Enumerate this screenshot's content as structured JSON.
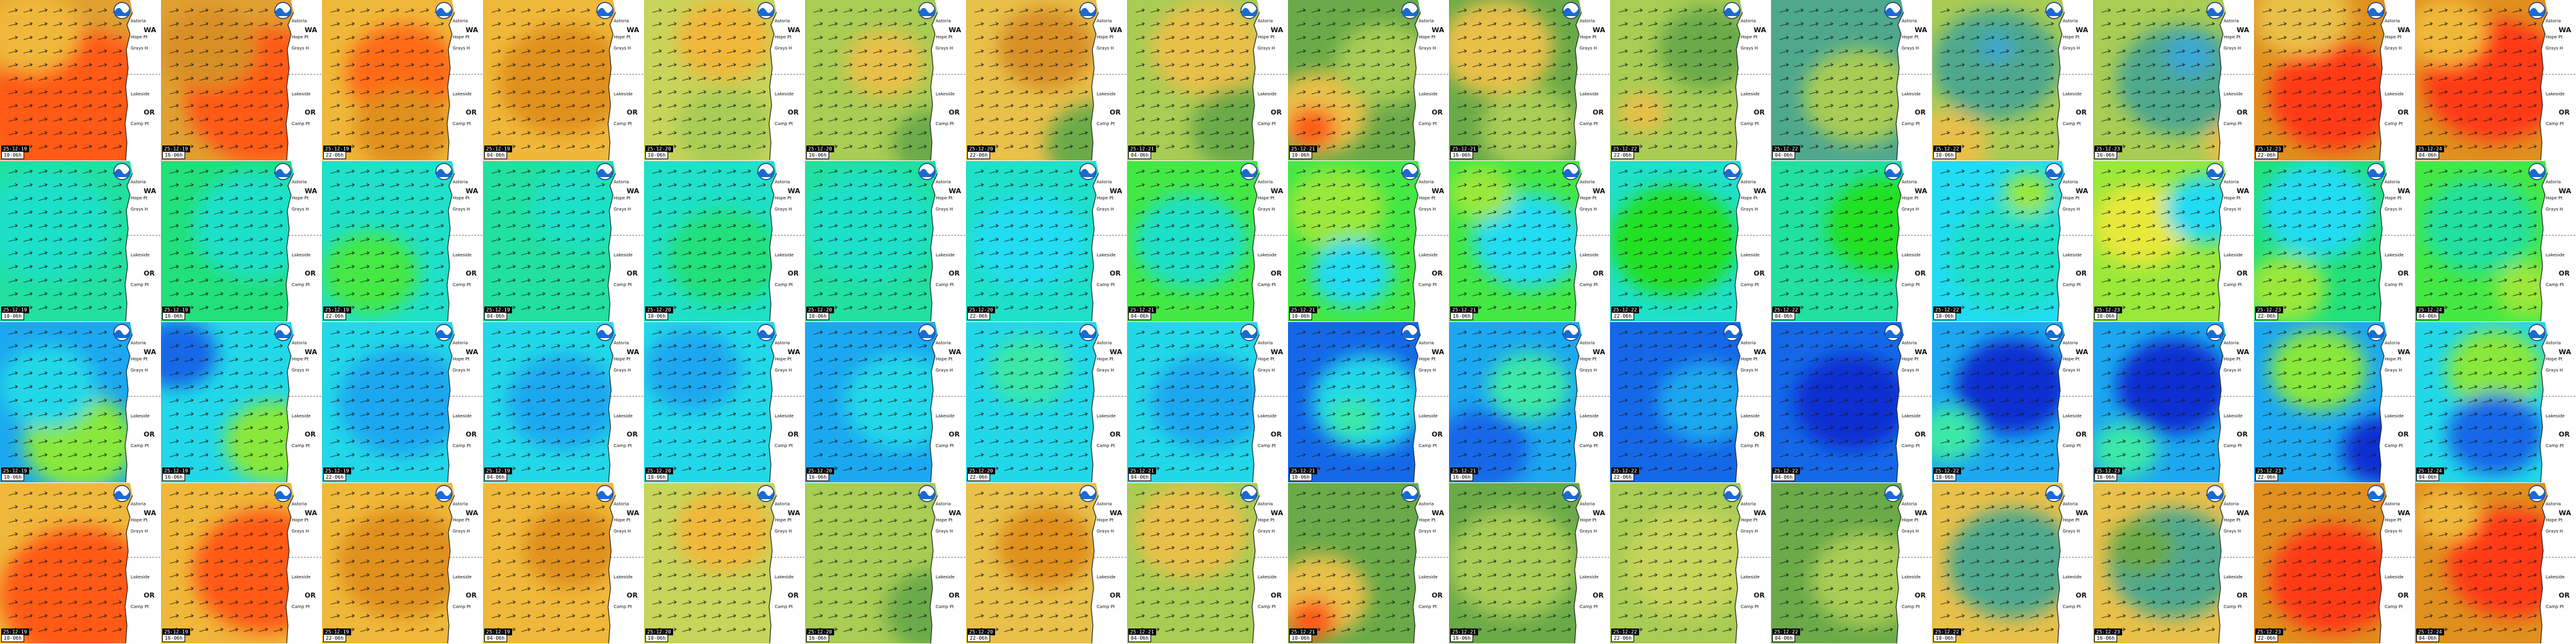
{
  "map_labels": {
    "state_1": "WA",
    "state_2": "OR",
    "cities": [
      "Astoria",
      "Hope Pt",
      "Grays H",
      "Lakeside",
      "Camp Pt"
    ]
  },
  "icons": [
    "noaa-logo-icon",
    "wind-arrow-icon"
  ],
  "palettes": {
    "row1": [
      "#e0901f",
      "#f0b83a",
      "#ff5a14",
      "#e8c04a",
      "#a8cc54",
      "#6aaa48",
      "#4ea88e",
      "#3aa7d6"
    ],
    "row2": [
      "#1fe0c8",
      "#22e07a",
      "#44e844",
      "#9ae83a",
      "#e8e83a",
      "#22dcf2"
    ],
    "row3": [
      "#0a2fd0",
      "#1468e8",
      "#1ca8f0",
      "#22d8e8",
      "#3ae8a8",
      "#88e83a",
      "#e8e83a"
    ],
    "row4": [
      "#e0901f",
      "#f0b83a",
      "#ff5a14",
      "#e8c04a",
      "#a8cc54",
      "#6aaa48",
      "#4ea88e"
    ]
  },
  "tiles": [
    {
      "date": "25-12-19",
      "time": "10-06h",
      "row": 1,
      "base": "#e0a032",
      "blobs": [
        [
          "#ff5a14",
          0.5,
          0.7,
          0.6
        ],
        [
          "#f0b83a",
          0.2,
          0.2,
          0.3
        ]
      ]
    },
    {
      "date": "25-12-19",
      "time": "16-06h",
      "row": 1,
      "base": "#e0a032",
      "blobs": [
        [
          "#ff5a14",
          0.65,
          0.6,
          0.5
        ],
        [
          "#d88f28",
          0.3,
          0.3,
          0.3
        ]
      ]
    },
    {
      "date": "25-12-19",
      "time": "22-06h",
      "row": 1,
      "base": "#f0b83a",
      "blobs": [
        [
          "#ff6a14",
          0.5,
          0.45,
          0.35
        ],
        [
          "#e0901f",
          0.5,
          0.8,
          0.3
        ]
      ]
    },
    {
      "date": "25-12-19",
      "time": "04-06h",
      "row": 1,
      "base": "#f0b83a",
      "blobs": [
        [
          "#e0901f",
          0.5,
          0.5,
          0.4
        ]
      ]
    },
    {
      "date": "25-12-20",
      "time": "10-06h",
      "row": 1,
      "base": "#c8d45a",
      "blobs": [
        [
          "#f0b83a",
          0.5,
          0.25,
          0.3
        ],
        [
          "#a8cc54",
          0.5,
          0.8,
          0.3
        ]
      ]
    },
    {
      "date": "25-12-20",
      "time": "16-06h",
      "row": 1,
      "base": "#a8cc54",
      "blobs": [
        [
          "#e8c04a",
          0.5,
          0.4,
          0.25
        ],
        [
          "#6aaa48",
          0.8,
          0.9,
          0.25
        ]
      ]
    },
    {
      "date": "25-12-20",
      "time": "22-06h",
      "row": 1,
      "base": "#e8c04a",
      "blobs": [
        [
          "#d88f28",
          0.5,
          0.3,
          0.3
        ],
        [
          "#6aaa48",
          0.8,
          0.9,
          0.3
        ]
      ]
    },
    {
      "date": "25-12-21",
      "time": "04-06h",
      "row": 1,
      "base": "#a8cc54",
      "blobs": [
        [
          "#e8c04a",
          0.5,
          0.3,
          0.35
        ],
        [
          "#6aaa48",
          0.7,
          0.8,
          0.3
        ]
      ]
    },
    {
      "date": "25-12-21",
      "time": "10-06h",
      "row": 1,
      "base": "#6aaa48",
      "blobs": [
        [
          "#e8c04a",
          0.2,
          0.7,
          0.3
        ],
        [
          "#ff5a14",
          0.15,
          0.8,
          0.15
        ],
        [
          "#a8cc54",
          0.6,
          0.4,
          0.3
        ]
      ]
    },
    {
      "date": "25-12-21",
      "time": "16-06h",
      "row": 1,
      "base": "#6aaa48",
      "blobs": [
        [
          "#e8c04a",
          0.3,
          0.3,
          0.35
        ],
        [
          "#a8cc54",
          0.5,
          0.8,
          0.3
        ]
      ]
    },
    {
      "date": "25-12-22",
      "time": "22-06h",
      "row": 1,
      "base": "#a8cc54",
      "blobs": [
        [
          "#6aaa48",
          0.6,
          0.3,
          0.3
        ],
        [
          "#e8c04a",
          0.2,
          0.7,
          0.15
        ]
      ]
    },
    {
      "date": "25-12-22",
      "time": "04-06h",
      "row": 1,
      "base": "#4ea88e",
      "blobs": [
        [
          "#a8cc54",
          0.55,
          0.6,
          0.35
        ]
      ]
    },
    {
      "date": "25-12-22",
      "time": "10-06h",
      "row": 1,
      "base": "#a8cc54",
      "blobs": [
        [
          "#4ea88e",
          0.4,
          0.4,
          0.4
        ],
        [
          "#3aa7d6",
          0.4,
          0.3,
          0.1
        ],
        [
          "#e8c04a",
          0.1,
          0.9,
          0.25
        ]
      ]
    },
    {
      "date": "25-12-23",
      "time": "16-06h",
      "row": 1,
      "base": "#a8cc54",
      "blobs": [
        [
          "#4ea88e",
          0.55,
          0.5,
          0.4
        ],
        [
          "#3aa7d6",
          0.6,
          0.35,
          0.15
        ],
        [
          "#e8c04a",
          0.9,
          0.9,
          0.2
        ]
      ]
    },
    {
      "date": "25-12-23",
      "time": "22-06h",
      "row": 1,
      "base": "#e0901f",
      "blobs": [
        [
          "#ff3a14",
          0.5,
          0.6,
          0.4
        ],
        [
          "#e8c04a",
          0.3,
          0.1,
          0.3
        ]
      ]
    },
    {
      "date": "25-12-24",
      "time": "04-06h",
      "row": 1,
      "base": "#e0901f",
      "blobs": [
        [
          "#ff3a14",
          0.5,
          0.5,
          0.45
        ],
        [
          "#f0b83a",
          0.2,
          0.2,
          0.25
        ]
      ]
    },
    {
      "date": "25-12-19",
      "time": "10-06h",
      "row": 2,
      "base": "#22e0a0",
      "blobs": [
        [
          "#1fe0c8",
          0.3,
          0.4,
          0.4
        ]
      ]
    },
    {
      "date": "25-12-19",
      "time": "16-06h",
      "row": 2,
      "base": "#22e07a",
      "blobs": [
        [
          "#1fe0c8",
          0.6,
          0.4,
          0.4
        ]
      ]
    },
    {
      "date": "25-12-19",
      "time": "22-06h",
      "row": 2,
      "base": "#1fe0c8",
      "blobs": [
        [
          "#44e844",
          0.3,
          0.7,
          0.3
        ]
      ]
    },
    {
      "date": "25-12-19",
      "time": "04-06h",
      "row": 2,
      "base": "#22e0a0",
      "blobs": [
        [
          "#1fe0c8",
          0.6,
          0.3,
          0.3
        ]
      ]
    },
    {
      "date": "25-12-20",
      "time": "10-06h",
      "row": 2,
      "base": "#1fe0c8",
      "blobs": [
        [
          "#22e07a",
          0.5,
          0.6,
          0.35
        ]
      ]
    },
    {
      "date": "25-12-20",
      "time": "16-06h",
      "row": 2,
      "base": "#22e0a0",
      "blobs": [
        [
          "#1fe0c8",
          0.4,
          0.4,
          0.4
        ]
      ]
    },
    {
      "date": "25-12-20",
      "time": "22-06h",
      "row": 2,
      "base": "#1fe0c8",
      "blobs": [
        [
          "#22dcf2",
          0.4,
          0.5,
          0.35
        ]
      ]
    },
    {
      "date": "25-12-21",
      "time": "04-06h",
      "row": 2,
      "base": "#44e844",
      "blobs": [
        [
          "#1fe0c8",
          0.4,
          0.5,
          0.35
        ]
      ]
    },
    {
      "date": "25-12-21",
      "time": "10-06h",
      "row": 2,
      "base": "#44e844",
      "blobs": [
        [
          "#9ae83a",
          0.3,
          0.3,
          0.3
        ],
        [
          "#22dcf2",
          0.4,
          0.7,
          0.25
        ]
      ]
    },
    {
      "date": "25-12-21",
      "time": "16-06h",
      "row": 2,
      "base": "#44e844",
      "blobs": [
        [
          "#22dcf2",
          0.5,
          0.5,
          0.35
        ],
        [
          "#9ae83a",
          0.2,
          0.2,
          0.2
        ]
      ]
    },
    {
      "date": "25-12-22",
      "time": "22-06h",
      "row": 2,
      "base": "#1fe0c8",
      "blobs": [
        [
          "#22e022",
          0.4,
          0.5,
          0.4
        ]
      ]
    },
    {
      "date": "25-12-22",
      "time": "04-06h",
      "row": 2,
      "base": "#22e0a0",
      "blobs": [
        [
          "#22e022",
          0.7,
          0.4,
          0.35
        ]
      ]
    },
    {
      "date": "25-12-22",
      "time": "10-06h",
      "row": 2,
      "base": "#22dcf2",
      "blobs": [
        [
          "#1fe0c8",
          0.5,
          0.6,
          0.4
        ],
        [
          "#9ae83a",
          0.6,
          0.2,
          0.15
        ]
      ]
    },
    {
      "date": "25-12-23",
      "time": "16-06h",
      "row": 2,
      "base": "#9ae83a",
      "blobs": [
        [
          "#e8e83a",
          0.3,
          0.4,
          0.3
        ],
        [
          "#22dcf2",
          0.7,
          0.3,
          0.25
        ]
      ]
    },
    {
      "date": "25-12-23",
      "time": "22-06h",
      "row": 2,
      "base": "#22e07a",
      "blobs": [
        [
          "#22dcf2",
          0.4,
          0.3,
          0.35
        ],
        [
          "#9ae83a",
          0.2,
          0.8,
          0.25
        ]
      ]
    },
    {
      "date": "25-12-24",
      "time": "04-06h",
      "row": 2,
      "base": "#44e844",
      "blobs": [
        [
          "#22e0a0",
          0.4,
          0.4,
          0.35
        ],
        [
          "#9ae83a",
          0.7,
          0.8,
          0.2
        ]
      ]
    },
    {
      "date": "25-12-19",
      "time": "10-06h",
      "row": 3,
      "base": "#1ca8f0",
      "blobs": [
        [
          "#88e83a",
          0.5,
          0.75,
          0.35
        ],
        [
          "#22d8e8",
          0.3,
          0.4,
          0.3
        ]
      ]
    },
    {
      "date": "25-12-19",
      "time": "16-06h",
      "row": 3,
      "base": "#22d8e8",
      "blobs": [
        [
          "#88e83a",
          0.7,
          0.75,
          0.3
        ],
        [
          "#1468e8",
          0.1,
          0.2,
          0.25
        ]
      ]
    },
    {
      "date": "25-12-19",
      "time": "22-06h",
      "row": 3,
      "base": "#22d8e8",
      "blobs": [
        [
          "#1ca8f0",
          0.5,
          0.5,
          0.4
        ]
      ]
    },
    {
      "date": "25-12-19",
      "time": "04-06h",
      "row": 3,
      "base": "#22d8e8",
      "blobs": [
        [
          "#1ca8f0",
          0.5,
          0.5,
          0.35
        ]
      ]
    },
    {
      "date": "25-12-20",
      "time": "10-06h",
      "row": 3,
      "base": "#22d8e8",
      "blobs": [
        [
          "#1ca8f0",
          0.3,
          0.3,
          0.3
        ]
      ]
    },
    {
      "date": "25-12-20",
      "time": "16-06h",
      "row": 3,
      "base": "#1ca8f0",
      "blobs": [
        [
          "#22d8e8",
          0.6,
          0.5,
          0.35
        ]
      ]
    },
    {
      "date": "25-12-20",
      "time": "22-06h",
      "row": 3,
      "base": "#22d8e8",
      "blobs": [
        [
          "#3ae8a8",
          0.4,
          0.3,
          0.25
        ]
      ]
    },
    {
      "date": "25-12-21",
      "time": "04-06h",
      "row": 3,
      "base": "#22d8e8",
      "blobs": [
        [
          "#1ca8f0",
          0.5,
          0.5,
          0.35
        ]
      ]
    },
    {
      "date": "25-12-21",
      "time": "10-06h",
      "row": 3,
      "base": "#1468e8",
      "blobs": [
        [
          "#22d8e8",
          0.5,
          0.5,
          0.35
        ],
        [
          "#3ae8a8",
          0.4,
          0.6,
          0.15
        ]
      ]
    },
    {
      "date": "25-12-21",
      "time": "16-06h",
      "row": 3,
      "base": "#1ca8f0",
      "blobs": [
        [
          "#3ae8a8",
          0.5,
          0.4,
          0.25
        ],
        [
          "#1468e8",
          0.2,
          0.8,
          0.3
        ]
      ]
    },
    {
      "date": "25-12-22",
      "time": "22-06h",
      "row": 3,
      "base": "#1468e8",
      "blobs": [
        [
          "#1ca8f0",
          0.6,
          0.5,
          0.3
        ]
      ]
    },
    {
      "date": "25-12-22",
      "time": "04-06h",
      "row": 3,
      "base": "#1468e8",
      "blobs": [
        [
          "#0a2fd0",
          0.5,
          0.5,
          0.35
        ]
      ]
    },
    {
      "date": "25-12-22",
      "time": "10-06h",
      "row": 3,
      "base": "#1ca8f0",
      "blobs": [
        [
          "#0a2fd0",
          0.5,
          0.4,
          0.35
        ],
        [
          "#3ae8a8",
          0.1,
          0.7,
          0.2
        ]
      ]
    },
    {
      "date": "25-12-23",
      "time": "16-06h",
      "row": 3,
      "base": "#1ca8f0",
      "blobs": [
        [
          "#0a2fd0",
          0.5,
          0.4,
          0.35
        ],
        [
          "#3ae8a8",
          0.2,
          0.8,
          0.2
        ]
      ]
    },
    {
      "date": "25-12-23",
      "time": "22-06h",
      "row": 3,
      "base": "#1ca8f0",
      "blobs": [
        [
          "#88e83a",
          0.4,
          0.3,
          0.3
        ],
        [
          "#0a2fd0",
          0.8,
          0.8,
          0.25
        ]
      ]
    },
    {
      "date": "25-12-24",
      "time": "04-06h",
      "row": 3,
      "base": "#22d8e8",
      "blobs": [
        [
          "#88e83a",
          0.5,
          0.3,
          0.3
        ],
        [
          "#1468e8",
          0.5,
          0.7,
          0.3
        ]
      ]
    },
    {
      "date": "25-12-19",
      "time": "10-06h",
      "row": 4,
      "base": "#f0b83a",
      "blobs": [
        [
          "#ff5a14",
          0.5,
          0.7,
          0.5
        ]
      ]
    },
    {
      "date": "25-12-19",
      "time": "16-06h",
      "row": 4,
      "base": "#f0b83a",
      "blobs": [
        [
          "#ff5a14",
          0.65,
          0.55,
          0.45
        ]
      ]
    },
    {
      "date": "25-12-19",
      "time": "22-06h",
      "row": 4,
      "base": "#f0b83a",
      "blobs": [
        [
          "#e0901f",
          0.5,
          0.5,
          0.4
        ]
      ]
    },
    {
      "date": "25-12-19",
      "time": "04-06h",
      "row": 4,
      "base": "#f0b83a",
      "blobs": [
        [
          "#e0901f",
          0.55,
          0.4,
          0.3
        ]
      ]
    },
    {
      "date": "25-12-20",
      "time": "10-06h",
      "row": 4,
      "base": "#c8d45a",
      "blobs": [
        [
          "#f0b83a",
          0.5,
          0.3,
          0.3
        ]
      ]
    },
    {
      "date": "25-12-20",
      "time": "16-06h",
      "row": 4,
      "base": "#a8cc54",
      "blobs": [
        [
          "#6aaa48",
          0.8,
          0.8,
          0.3
        ]
      ]
    },
    {
      "date": "25-12-20",
      "time": "22-06h",
      "row": 4,
      "base": "#e8c04a",
      "blobs": [
        [
          "#e0901f",
          0.5,
          0.4,
          0.3
        ]
      ]
    },
    {
      "date": "25-12-21",
      "time": "04-06h",
      "row": 4,
      "base": "#a8cc54",
      "blobs": [
        [
          "#e8c04a",
          0.4,
          0.3,
          0.35
        ]
      ]
    },
    {
      "date": "25-12-21",
      "time": "10-06h",
      "row": 4,
      "base": "#6aaa48",
      "blobs": [
        [
          "#e8c04a",
          0.2,
          0.7,
          0.3
        ],
        [
          "#ff5a14",
          0.15,
          0.85,
          0.15
        ]
      ]
    },
    {
      "date": "25-12-21",
      "time": "16-06h",
      "row": 4,
      "base": "#6aaa48",
      "blobs": [
        [
          "#a8cc54",
          0.4,
          0.5,
          0.4
        ]
      ]
    },
    {
      "date": "25-12-22",
      "time": "22-06h",
      "row": 4,
      "base": "#a8cc54",
      "blobs": [
        [
          "#c8d45a",
          0.5,
          0.5,
          0.4
        ]
      ]
    },
    {
      "date": "25-12-22",
      "time": "04-06h",
      "row": 4,
      "base": "#6aaa48",
      "blobs": [
        [
          "#a8cc54",
          0.6,
          0.6,
          0.35
        ]
      ]
    },
    {
      "date": "25-12-22",
      "time": "10-06h",
      "row": 4,
      "base": "#e8c04a",
      "blobs": [
        [
          "#4ea88e",
          0.5,
          0.5,
          0.4
        ]
      ]
    },
    {
      "date": "25-12-23",
      "time": "16-06h",
      "row": 4,
      "base": "#e8c04a",
      "blobs": [
        [
          "#4ea88e",
          0.5,
          0.5,
          0.4
        ],
        [
          "#6aaa48",
          0.3,
          0.4,
          0.2
        ]
      ]
    },
    {
      "date": "25-12-23",
      "time": "22-06h",
      "row": 4,
      "base": "#e0901f",
      "blobs": [
        [
          "#ff3a14",
          0.5,
          0.6,
          0.4
        ]
      ]
    },
    {
      "date": "25-12-24",
      "time": "04-06h",
      "row": 4,
      "base": "#e0901f",
      "blobs": [
        [
          "#ff3a14",
          0.6,
          0.5,
          0.4
        ],
        [
          "#f0b83a",
          0.2,
          0.2,
          0.2
        ]
      ]
    }
  ]
}
